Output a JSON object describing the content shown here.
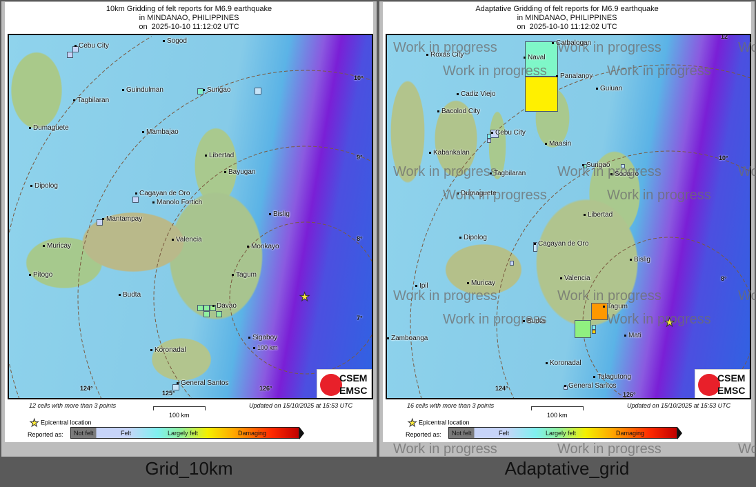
{
  "left": {
    "title": [
      "10km Gridding of felt reports for M6.9 earthquake",
      "in MINDANAO, PHILIPPINES",
      "on  2025-10-10 11:12:02 UTC"
    ],
    "cities": [
      "Cebu City",
      "Sogod",
      "Surigao",
      "Tagbilaran",
      "Guindulman",
      "Dumaguete",
      "Mambajao",
      "Libertad",
      "Bayugan",
      "Dipolog",
      "Cagayan de Oro",
      "Manolo Fortich",
      "Mantampay",
      "Bislig",
      "Muricay",
      "Valencia",
      "Monkayo",
      "Tagum",
      "Pitogo",
      "Budta",
      "Davao",
      "Sigaboy",
      "Koronadal",
      "General Santos"
    ],
    "degrees": [
      "10°",
      "9°",
      "8°",
      "7°",
      "124°",
      "125°",
      "126°"
    ],
    "ring_label": "100 km",
    "cells_note": "12 cells with more than 3 points",
    "caption": "Grid_10km"
  },
  "right": {
    "title": [
      "Adaptative Gridding of felt reports for M6.9 earthquake",
      "in MINDANAO, PHILIPPINES",
      "on  2025-10-10 11:12:02 UTC"
    ],
    "cities": [
      "Catbalogan",
      "Roxas City",
      "Naval",
      "Panalanoy",
      "Guiuan",
      "Cadiz Viejo",
      "Bacolod City",
      "Cebu City",
      "Maasin",
      "Kabankalan",
      "Surigao",
      "Socorro",
      "Tagbilaran",
      "Dumaguete",
      "Libertad",
      "Dipolog",
      "Cagayan de Oro",
      "Bislig",
      "Valencia",
      "Ipil",
      "Muricay",
      "Tagum",
      "Budta",
      "Zamboanga",
      "Mati",
      "Koronadal",
      "Talagutong",
      "General Santos"
    ],
    "degrees": [
      "12",
      "10°",
      "8°",
      "124°",
      "126°"
    ],
    "cells_note": "16 cells with more than 3 points",
    "watermark": "Work in progress",
    "caption": "Adaptative_grid"
  },
  "common": {
    "scale": "100 km",
    "updated": "Updated on 15/10/2025 at 15:53 UTC",
    "epicentral": "Epicentral location",
    "reported_as": "Reported as:",
    "legend": [
      "Not felt",
      "Felt",
      "Largely felt",
      "Damaging"
    ],
    "logo": [
      "CSEM",
      "EMSC"
    ]
  },
  "colors": {
    "not_felt": "#7a7a7a",
    "felt": "#c7d4f8",
    "largely_felt": "#90f0a0",
    "strong": "#f4f000",
    "damaging": "#ffa500",
    "severe": "#c00000",
    "background": "#5a5a5a"
  }
}
